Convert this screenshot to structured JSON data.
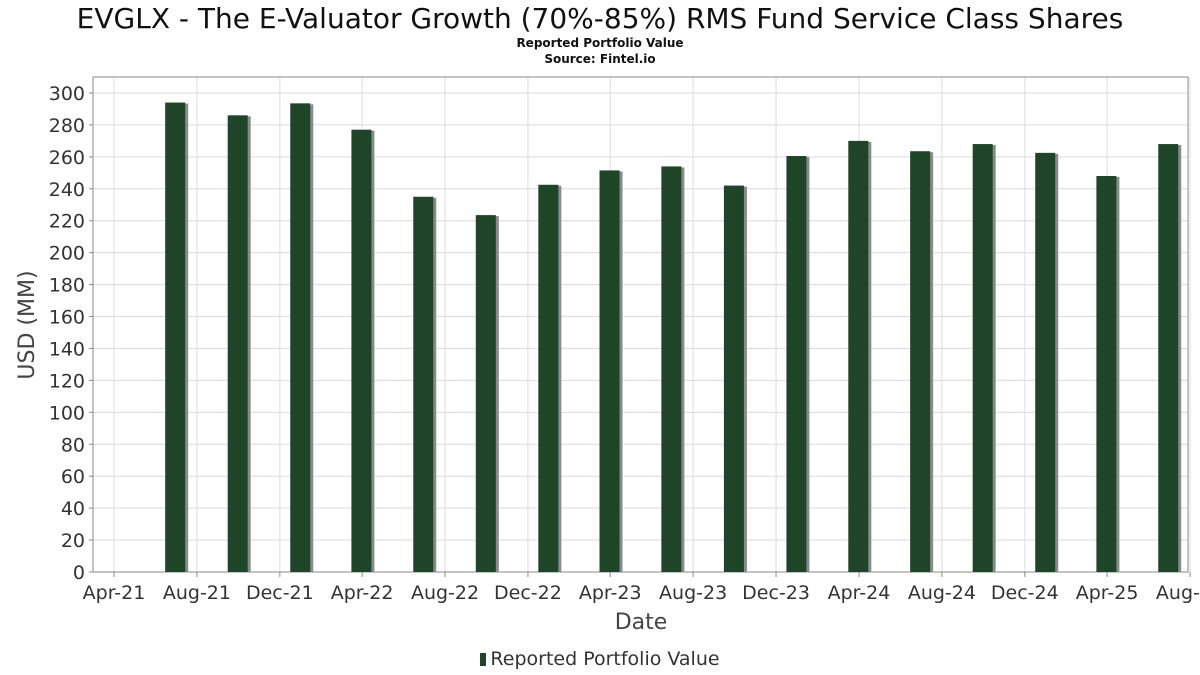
{
  "chart_data": {
    "type": "bar",
    "title": "EVGLX - The E-Valuator Growth (70%-85%) RMS Fund Service Class Shares",
    "subtitle": "Reported Portfolio Value",
    "source": "Source: Fintel.io",
    "xlabel": "Date",
    "ylabel": "USD (MM)",
    "ylim": [
      0,
      310
    ],
    "yticks": [
      0,
      20,
      40,
      60,
      80,
      100,
      120,
      140,
      160,
      180,
      200,
      220,
      240,
      260,
      280,
      300
    ],
    "xticks": [
      "Apr-21",
      "Aug-21",
      "Dec-21",
      "Apr-22",
      "Aug-22",
      "Dec-22",
      "Apr-23",
      "Aug-23",
      "Dec-23",
      "Apr-24",
      "Aug-24",
      "Dec-24",
      "Apr-25",
      "Aug-25"
    ],
    "grid": true,
    "legend_position": "bottom",
    "bar_color": "#1e4528",
    "series": [
      {
        "name": "Reported Portfolio Value",
        "x": [
          "2021-06-30",
          "2021-09-30",
          "2021-12-31",
          "2022-03-31",
          "2022-06-30",
          "2022-09-30",
          "2022-12-31",
          "2023-03-31",
          "2023-06-30",
          "2023-09-30",
          "2023-12-31",
          "2024-03-31",
          "2024-06-30",
          "2024-09-30",
          "2024-12-31",
          "2025-03-31",
          "2025-06-30"
        ],
        "values": [
          294,
          286,
          293.5,
          277,
          235,
          223.5,
          242.5,
          251.5,
          254,
          242,
          260.5,
          270,
          263.5,
          268,
          262.5,
          248,
          268
        ]
      }
    ]
  }
}
